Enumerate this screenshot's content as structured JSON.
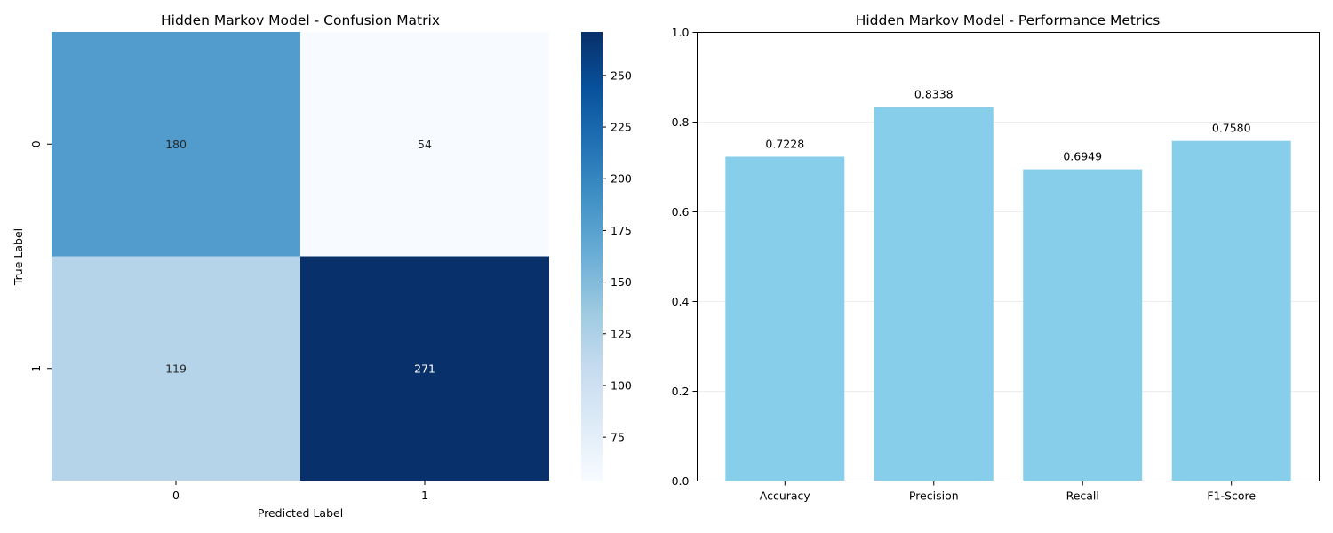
{
  "chart_data": [
    {
      "type": "heatmap",
      "title": "Hidden Markov Model - Confusion Matrix",
      "xlabel": "Predicted Label",
      "ylabel": "True Label",
      "x_categories": [
        "0",
        "1"
      ],
      "y_categories": [
        "0",
        "1"
      ],
      "values": [
        [
          180,
          54
        ],
        [
          119,
          271
        ]
      ],
      "colormap": "Blues",
      "color_range": [
        54,
        271
      ],
      "colorbar_ticks": [
        "75",
        "100",
        "125",
        "150",
        "175",
        "200",
        "225",
        "250"
      ],
      "colorbar_tick_values": [
        75,
        100,
        125,
        150,
        175,
        200,
        225,
        250
      ]
    },
    {
      "type": "bar",
      "title": "Hidden Markov Model - Performance Metrics",
      "xlabel": "",
      "ylabel": "",
      "categories": [
        "Accuracy",
        "Precision",
        "Recall",
        "F1-Score"
      ],
      "values": [
        0.7228,
        0.8338,
        0.6949,
        0.758
      ],
      "value_labels": [
        "0.7228",
        "0.8338",
        "0.6949",
        "0.7580"
      ],
      "ylim": [
        0,
        1
      ],
      "yticks": [
        "0.0",
        "0.2",
        "0.4",
        "0.6",
        "0.8",
        "1.0"
      ],
      "ytick_values": [
        0,
        0.2,
        0.4,
        0.6,
        0.8,
        1.0
      ],
      "grid": "y",
      "bar_color": "#87CEEB"
    }
  ]
}
